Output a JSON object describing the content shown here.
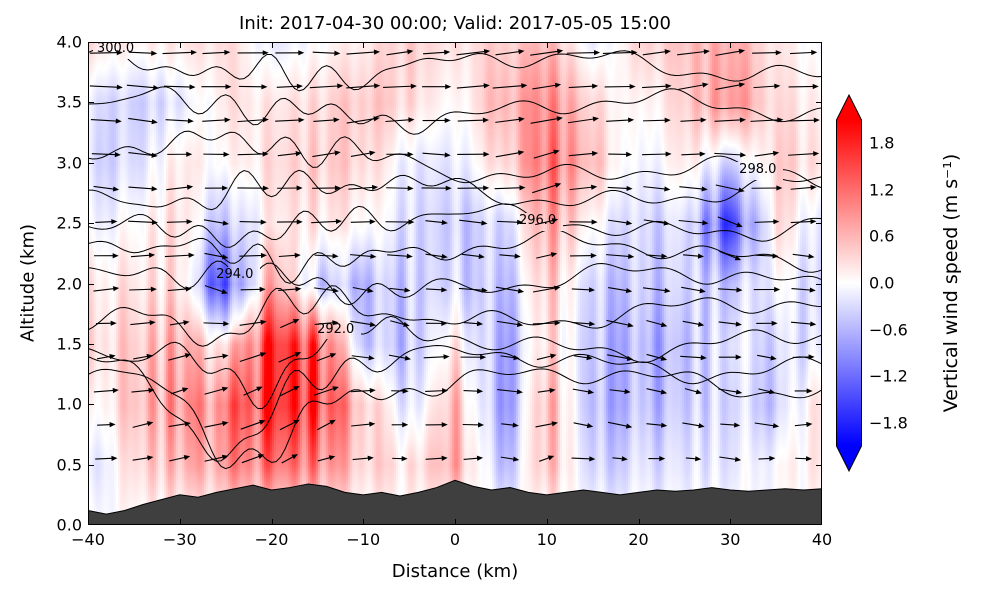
{
  "chart_data": {
    "type": "heatmap",
    "subtype": "vertical cross-section: filled contours of vertical wind speed, potential temperature contours (K), wind vectors, terrain silhouette",
    "title": "Init: 2017-04-30 00:00; Valid: 2017-05-05 15:00",
    "xlabel": "Distance (km)",
    "ylabel": "Altitude (km)",
    "xlim": [
      -40,
      40
    ],
    "ylim": [
      0,
      4
    ],
    "xticks": [
      -40,
      -30,
      -20,
      -10,
      0,
      10,
      20,
      30,
      40
    ],
    "xticklabels": [
      "−40",
      "−30",
      "−20",
      "−10",
      "0",
      "10",
      "20",
      "30",
      "40"
    ],
    "yticks": [
      0,
      0.5,
      1,
      1.5,
      2,
      2.5,
      3,
      3.5,
      4
    ],
    "yticklabels": [
      "0.0",
      "0.5",
      "1.0",
      "1.5",
      "2.0",
      "2.5",
      "3.0",
      "3.5",
      "4.0"
    ],
    "colorbar": {
      "label": "Vertical wind speed (m s⁻¹)",
      "ticks": [
        1.8,
        1.2,
        0.6,
        0,
        -0.6,
        -1.2,
        -1.8
      ],
      "ticklabels": [
        "1.8",
        "1.2",
        "0.6",
        "0.0",
        "−0.6",
        "−1.2",
        "−1.8"
      ],
      "vmax": 2.1,
      "extend": "both",
      "colors": [
        "#0000ff",
        "#ffffff",
        "#ff0000"
      ]
    },
    "w_field": {
      "units": "m s-1",
      "x": [
        -40,
        -35,
        -30,
        -25,
        -20,
        -15,
        -10,
        -5,
        0,
        5,
        10,
        15,
        20,
        25,
        30,
        35,
        40
      ],
      "alt": [
        0,
        0.5,
        1,
        1.5,
        2,
        2.5,
        3,
        3.5,
        4
      ],
      "values": [
        [
          0,
          0,
          0,
          0,
          0,
          0,
          0,
          0,
          0,
          0,
          0,
          0,
          0,
          0,
          0,
          0,
          0
        ],
        [
          -0.3,
          0.3,
          0.6,
          0.8,
          1.2,
          1.0,
          0.4,
          0.2,
          0.7,
          -0.6,
          0.6,
          -0.4,
          -0.3,
          -0.2,
          -0.2,
          0.0,
          0.2
        ],
        [
          0.0,
          0.5,
          0.9,
          1.0,
          1.8,
          1.6,
          0.5,
          -0.3,
          0.6,
          -0.9,
          0.7,
          -0.6,
          -0.6,
          -0.4,
          -0.3,
          -0.4,
          0.3
        ],
        [
          0.3,
          0.4,
          0.7,
          0.2,
          1.8,
          1.4,
          -0.4,
          -0.5,
          0.2,
          -0.8,
          0.4,
          -0.5,
          -0.7,
          -0.5,
          -0.2,
          -0.3,
          -0.2
        ],
        [
          0.2,
          0.2,
          0.3,
          -1.6,
          0.8,
          -0.4,
          -0.5,
          -0.4,
          -0.3,
          -0.6,
          0.5,
          -0.4,
          -0.5,
          -0.3,
          -0.5,
          0.0,
          -0.4
        ],
        [
          -0.1,
          0.0,
          0.3,
          -0.6,
          0.2,
          0.2,
          0.1,
          -0.3,
          -0.4,
          -0.4,
          0.8,
          0.0,
          -0.4,
          -0.2,
          -1.6,
          0.3,
          -0.3
        ],
        [
          -0.3,
          -0.3,
          0.2,
          0.0,
          0.3,
          0.4,
          0.4,
          -0.2,
          -0.2,
          0.3,
          1.2,
          0.5,
          -0.2,
          0.2,
          -0.4,
          0.4,
          0.2
        ],
        [
          -0.2,
          -0.4,
          -0.2,
          0.2,
          0.2,
          0.3,
          0.5,
          0.3,
          0.0,
          0.6,
          1.0,
          0.3,
          0.0,
          0.4,
          0.9,
          0.3,
          0.1
        ],
        [
          0.3,
          0.1,
          0.2,
          0.3,
          -0.2,
          0.0,
          0.2,
          0.4,
          0.2,
          0.4,
          0.6,
          -0.2,
          0.3,
          0.5,
          0.7,
          0.2,
          -0.1
        ]
      ]
    },
    "theta_contours": [
      {
        "level": "290.0",
        "base_alt": 1.18,
        "label_x": null,
        "slope": 0,
        "dip": {
          "center": -23,
          "width": 7,
          "amount": -0.6
        }
      },
      {
        "level": "291.0",
        "base_alt": 1.34,
        "label_x": null,
        "slope": 0,
        "dip": {
          "center": -25,
          "width": 6,
          "amount": -0.7
        }
      },
      {
        "level": "292.0",
        "base_alt": 1.52,
        "label_x": -13,
        "slope": 0,
        "dip": {
          "center": -22,
          "width": 5,
          "amount": -0.45
        }
      },
      {
        "level": "293.0",
        "base_alt": 1.76,
        "label_x": null,
        "slope": 0,
        "dip": {
          "center": -27,
          "width": 4,
          "amount": -0.3
        }
      },
      {
        "level": "294.0",
        "base_alt": 2.02,
        "label_x": -24,
        "slope": 0,
        "dip": null
      },
      {
        "level": "295.0",
        "base_alt": 2.27,
        "label_x": null,
        "slope": 0,
        "dip": null
      },
      {
        "level": "296.0",
        "base_alt": 2.5,
        "label_x": 9,
        "slope": 0,
        "dip": null
      },
      {
        "level": "297.0",
        "base_alt": 2.76,
        "label_x": null,
        "slope": 0,
        "dip": null
      },
      {
        "level": "298.0",
        "base_alt": 3.0,
        "label_x": 33,
        "slope": -0.004,
        "dip": null
      },
      {
        "level": "299.0",
        "base_alt": 3.44,
        "label_x": null,
        "slope": 0,
        "dip": null
      },
      {
        "level": "300.0",
        "base_alt": 3.8,
        "label_x": -37,
        "slope": 0,
        "dip": null
      }
    ],
    "contour_units": "K",
    "terrain": {
      "color": "#3f3f3f",
      "points": [
        [
          -40,
          0.12
        ],
        [
          -38,
          0.09
        ],
        [
          -36,
          0.12
        ],
        [
          -34,
          0.17
        ],
        [
          -32,
          0.21
        ],
        [
          -30,
          0.25
        ],
        [
          -28,
          0.23
        ],
        [
          -26,
          0.27
        ],
        [
          -24,
          0.3
        ],
        [
          -22,
          0.33
        ],
        [
          -20,
          0.29
        ],
        [
          -18,
          0.31
        ],
        [
          -16,
          0.34
        ],
        [
          -14,
          0.32
        ],
        [
          -12,
          0.27
        ],
        [
          -10,
          0.25
        ],
        [
          -8,
          0.27
        ],
        [
          -6,
          0.24
        ],
        [
          -4,
          0.27
        ],
        [
          -2,
          0.31
        ],
        [
          0,
          0.37
        ],
        [
          2,
          0.32
        ],
        [
          4,
          0.29
        ],
        [
          6,
          0.31
        ],
        [
          8,
          0.27
        ],
        [
          10,
          0.25
        ],
        [
          12,
          0.27
        ],
        [
          14,
          0.29
        ],
        [
          16,
          0.27
        ],
        [
          18,
          0.25
        ],
        [
          20,
          0.27
        ],
        [
          22,
          0.29
        ],
        [
          24,
          0.28
        ],
        [
          26,
          0.29
        ],
        [
          28,
          0.31
        ],
        [
          30,
          0.29
        ],
        [
          32,
          0.28
        ],
        [
          34,
          0.29
        ],
        [
          36,
          0.3
        ],
        [
          38,
          0.29
        ],
        [
          40,
          0.3
        ]
      ]
    },
    "quiver": {
      "symbol": "arrow",
      "direction": "left-to-right",
      "x_start": -38,
      "x_step": 4,
      "cols": 20,
      "alt_start": 0.55,
      "alt_step": 0.28,
      "rows": 13
    }
  }
}
